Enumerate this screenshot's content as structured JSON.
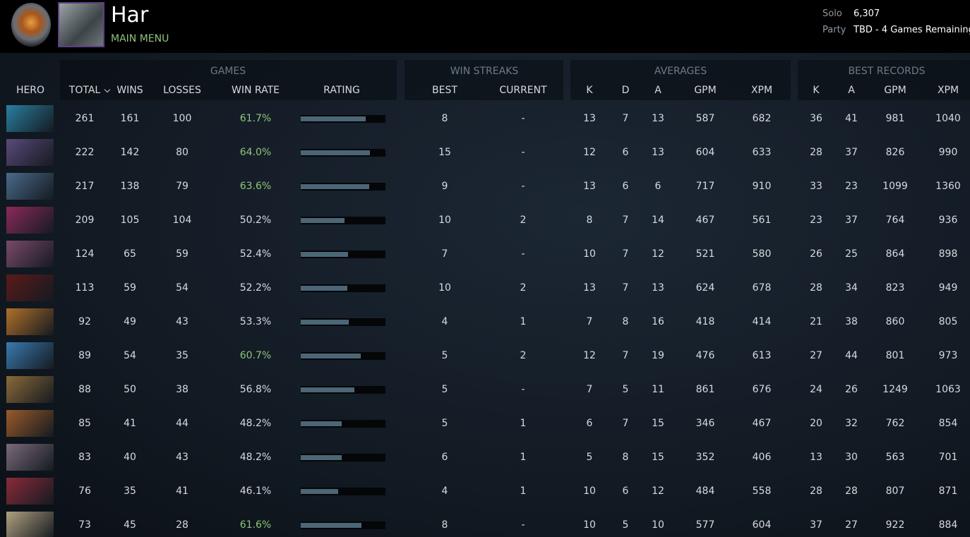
{
  "header": {
    "name": "Har",
    "subtitle": "MAIN MENU",
    "solo_label": "Solo",
    "solo_value": "6,307",
    "party_label": "Party",
    "party_value": "TBD - 4 Games Remaining"
  },
  "table": {
    "groups": [
      "GAMES",
      "WIN STREAKS",
      "AVERAGES",
      "BEST RECORDS"
    ],
    "columns": [
      "HERO",
      "TOTAL",
      "WINS",
      "LOSSES",
      "WIN RATE",
      "RATING",
      "BEST",
      "CURRENT",
      "K",
      "D",
      "A",
      "GPM",
      "XPM",
      "K",
      "A",
      "GPM",
      "XPM"
    ],
    "rows": [
      [
        261,
        161,
        100,
        "61.7%",
        8,
        "-",
        13,
        7,
        13,
        587,
        682,
        36,
        41,
        981,
        1040
      ],
      [
        222,
        142,
        80,
        "64.0%",
        15,
        "-",
        12,
        6,
        13,
        604,
        633,
        28,
        37,
        826,
        990
      ],
      [
        217,
        138,
        79,
        "63.6%",
        9,
        "-",
        13,
        6,
        6,
        717,
        910,
        33,
        23,
        1099,
        1360
      ],
      [
        209,
        105,
        104,
        "50.2%",
        10,
        2,
        8,
        7,
        14,
        467,
        561,
        23,
        37,
        764,
        936
      ],
      [
        124,
        65,
        59,
        "52.4%",
        7,
        "-",
        10,
        7,
        12,
        521,
        580,
        26,
        25,
        864,
        898
      ],
      [
        113,
        59,
        54,
        "52.2%",
        10,
        2,
        13,
        7,
        13,
        624,
        678,
        28,
        34,
        823,
        949
      ],
      [
        92,
        49,
        43,
        "53.3%",
        4,
        1,
        7,
        8,
        16,
        418,
        414,
        21,
        38,
        860,
        805
      ],
      [
        89,
        54,
        35,
        "60.7%",
        5,
        2,
        12,
        7,
        19,
        476,
        613,
        27,
        44,
        801,
        973
      ],
      [
        88,
        50,
        38,
        "56.8%",
        5,
        "-",
        7,
        5,
        11,
        861,
        676,
        24,
        26,
        1249,
        1063
      ],
      [
        85,
        41,
        44,
        "48.2%",
        5,
        1,
        6,
        7,
        15,
        346,
        467,
        20,
        32,
        762,
        854
      ],
      [
        83,
        40,
        43,
        "48.2%",
        6,
        1,
        5,
        8,
        15,
        352,
        406,
        13,
        30,
        563,
        701
      ],
      [
        76,
        35,
        41,
        "46.1%",
        4,
        1,
        10,
        6,
        12,
        484,
        558,
        28,
        28,
        807,
        871
      ],
      [
        73,
        45,
        28,
        "61.6%",
        8,
        "-",
        10,
        5,
        10,
        577,
        604,
        37,
        27,
        922,
        884
      ]
    ],
    "ratings": [
      77,
      82,
      81,
      52,
      56,
      55,
      57,
      71,
      63,
      48,
      48,
      44,
      72
    ]
  }
}
